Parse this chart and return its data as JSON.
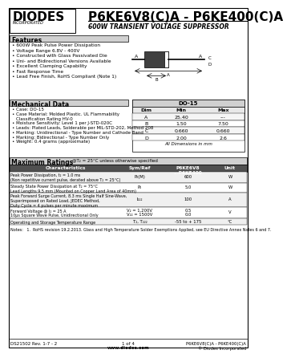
{
  "title": "P6KE6V8(C)A - P6KE400(C)A",
  "subtitle": "600W TRANSIENT VOLTAGE SUPPRESSOR",
  "logo_text": "DIODES",
  "logo_sub": "INCORPORATED",
  "features_title": "Features",
  "features": [
    "600W Peak Pulse Power Dissipation",
    "Voltage Range 6.8V - 400V",
    "Constructed with Glass Passivated Die",
    "Uni- and Bidirectional Versions Available",
    "Excellent Clamping Capability",
    "Fast Response Time",
    "Lead Free Finish, RoHS Compliant (Note 1)"
  ],
  "mech_title": "Mechanical Data",
  "mech_items": [
    "Case: DO-15",
    "Case Material: Molded Plastic. UL Flammability",
    "   Classification Rating HV-0",
    "Moisture Sensitivity: Level 1 per J-STD-020C",
    "Leads: Plated Leads, Solderable per MIL-STD-202, Method 208",
    "Marking: Unidirectional - Type Number and Cathode Band",
    "Marking: Bidirectional - Type Number Only",
    "Weight: 0.4 grams (approximate)"
  ],
  "dim_table_title": "DO-15",
  "dim_headers": [
    "Dim",
    "Min",
    "Max"
  ],
  "dim_rows": [
    [
      "A",
      "25.40",
      "---"
    ],
    [
      "B",
      "1.50",
      "7.50"
    ],
    [
      "C",
      "0.660",
      "0.660"
    ],
    [
      "D",
      "2.00",
      "2.6"
    ]
  ],
  "dim_note": "All Dimensions in mm",
  "max_ratings_title": "Maximum Ratings",
  "max_ratings_note": "@T₂ = 25°C unless otherwise specified",
  "table_headers": [
    "Characteristics",
    "Sym/Ref",
    "P6KE6V8 ... P6KE400",
    "Unit"
  ],
  "table_rows": [
    [
      "Peak Power Dissipation, t₂ = 1.0 ms\n(Non repetitive current pulse, derated above T₂ = 25°C)",
      "P₂(M)",
      "600",
      "W"
    ],
    [
      "Steady State Power Dissipation at T₂ = 75°C\nLead Lengths 9.5 mm (Mounted on Copper Land Area of 40mm)",
      "P₂",
      "5.0",
      "W"
    ],
    [
      "Peak Forward Surge Current, 8.3 ms Single Half Sine-Wave, Superimposed\non Rated Load, JEDEC Method, Duty Cycle = 4 pulses per minute maximum",
      "I₂₂₂",
      "100",
      "A"
    ],
    [
      "Forward Voltage @ I₂ = 25 A\n10µs Square Wave Pulse, Unidirectional Only",
      "V₂ = 1,200V\nV₂₂ = 1500V\nV₂",
      "0.5\n0.0",
      "V"
    ],
    [
      "Operating and Storage Temperature Range",
      "T₂, T₂₂₂",
      "-55 to + 175",
      "°C"
    ]
  ],
  "notes_text": "Notes:   1.  RoHS revision 19.2.2013. Glass and High Temperature Solder Exemptions Applied, see EU Directive Annex Notes 6 and 7.",
  "footer_left": "DS21502 Rev. 1-7 - 2",
  "footer_center": "1 of 4\nwww.diodes.com",
  "footer_right": "P6KE6V8(C)A - P6KE400(C)A\n© Diodes Incorporated",
  "bg_color": "#ffffff",
  "text_color": "#000000",
  "header_bg": "#404040",
  "header_fg": "#ffffff",
  "section_header_bg": "#c0c0c0",
  "table_line_color": "#888888",
  "border_color": "#000000"
}
